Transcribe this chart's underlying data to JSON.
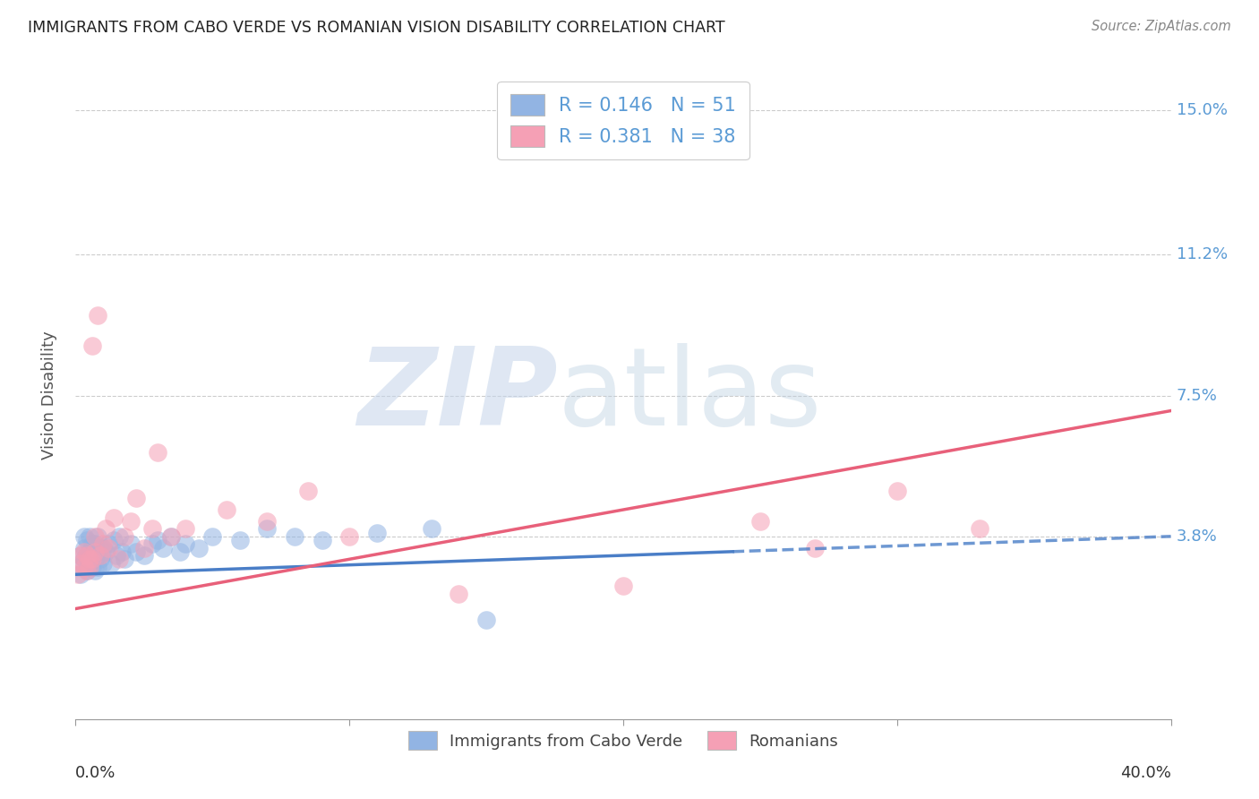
{
  "title": "IMMIGRANTS FROM CABO VERDE VS ROMANIAN VISION DISABILITY CORRELATION CHART",
  "source": "Source: ZipAtlas.com",
  "ylabel": "Vision Disability",
  "xmin": 0.0,
  "xmax": 0.4,
  "ymin": -0.01,
  "ymax": 0.16,
  "cabo_verde_R": 0.146,
  "cabo_verde_N": 51,
  "romanian_R": 0.381,
  "romanian_N": 38,
  "cabo_verde_color": "#92b4e3",
  "romanian_color": "#f5a0b5",
  "cabo_verde_line_color": "#4a7ec7",
  "romanian_line_color": "#e8607a",
  "watermark_color": "#ccd9ee",
  "grid_color": "#cccccc",
  "axis_label_color": "#5b9bd5",
  "ytick_vals": [
    0.038,
    0.075,
    0.112,
    0.15
  ],
  "ytick_labels": [
    "3.8%",
    "7.5%",
    "11.2%",
    "15.0%"
  ],
  "cabo_verde_x": [
    0.001,
    0.002,
    0.002,
    0.003,
    0.003,
    0.003,
    0.004,
    0.004,
    0.004,
    0.005,
    0.005,
    0.005,
    0.006,
    0.006,
    0.006,
    0.007,
    0.007,
    0.007,
    0.008,
    0.008,
    0.008,
    0.009,
    0.009,
    0.01,
    0.01,
    0.011,
    0.012,
    0.013,
    0.014,
    0.015,
    0.016,
    0.017,
    0.018,
    0.02,
    0.022,
    0.025,
    0.028,
    0.03,
    0.032,
    0.035,
    0.038,
    0.04,
    0.045,
    0.05,
    0.06,
    0.07,
    0.08,
    0.09,
    0.11,
    0.13,
    0.15
  ],
  "cabo_verde_y": [
    0.03,
    0.033,
    0.028,
    0.035,
    0.032,
    0.038,
    0.029,
    0.033,
    0.037,
    0.031,
    0.034,
    0.038,
    0.03,
    0.033,
    0.036,
    0.029,
    0.032,
    0.036,
    0.03,
    0.034,
    0.038,
    0.032,
    0.035,
    0.031,
    0.035,
    0.034,
    0.036,
    0.031,
    0.037,
    0.033,
    0.038,
    0.034,
    0.032,
    0.036,
    0.034,
    0.033,
    0.036,
    0.037,
    0.035,
    0.038,
    0.034,
    0.036,
    0.035,
    0.038,
    0.037,
    0.04,
    0.038,
    0.037,
    0.039,
    0.04,
    0.016
  ],
  "romanian_x": [
    0.001,
    0.002,
    0.002,
    0.003,
    0.003,
    0.004,
    0.004,
    0.005,
    0.005,
    0.006,
    0.006,
    0.007,
    0.007,
    0.008,
    0.009,
    0.01,
    0.011,
    0.012,
    0.014,
    0.016,
    0.018,
    0.02,
    0.022,
    0.025,
    0.028,
    0.03,
    0.035,
    0.04,
    0.055,
    0.07,
    0.085,
    0.1,
    0.14,
    0.2,
    0.25,
    0.27,
    0.3,
    0.33
  ],
  "romanian_y": [
    0.028,
    0.031,
    0.033,
    0.03,
    0.034,
    0.029,
    0.033,
    0.03,
    0.032,
    0.088,
    0.032,
    0.034,
    0.038,
    0.096,
    0.033,
    0.036,
    0.04,
    0.035,
    0.043,
    0.032,
    0.038,
    0.042,
    0.048,
    0.035,
    0.04,
    0.06,
    0.038,
    0.04,
    0.045,
    0.042,
    0.05,
    0.038,
    0.023,
    0.025,
    0.042,
    0.035,
    0.05,
    0.04
  ],
  "cv_line_solid_end": 0.24,
  "cv_line_start_y": 0.028,
  "cv_line_end_y": 0.038,
  "ro_line_start_y": 0.019,
  "ro_line_end_y": 0.071
}
